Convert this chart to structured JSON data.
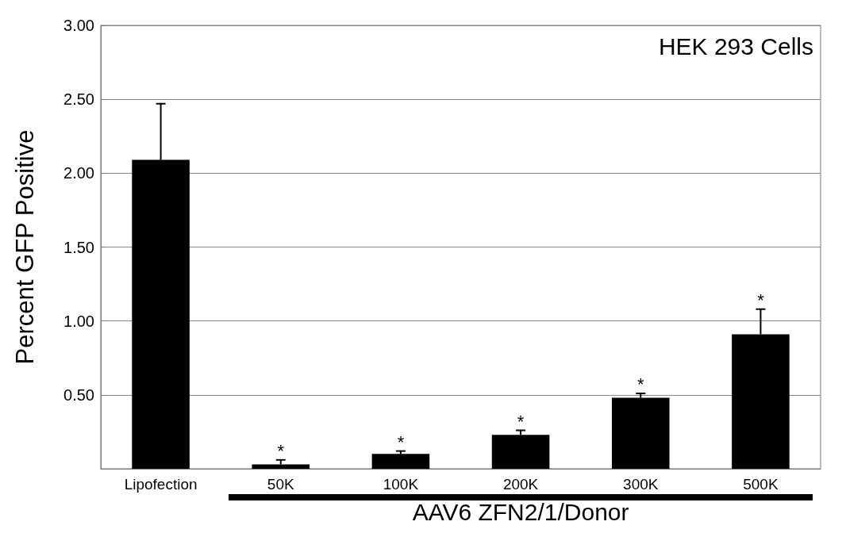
{
  "chart_data": {
    "type": "bar",
    "title": "HEK 293 Cells",
    "xlabel": "AAV6 ZFN2/1/Donor",
    "ylabel": "Percent GFP Positive",
    "categories": [
      "Lipofection",
      "50K",
      "100K",
      "200K",
      "300K",
      "500K"
    ],
    "values": [
      2.09,
      0.03,
      0.1,
      0.23,
      0.48,
      0.91
    ],
    "errors": [
      [
        2.09,
        2.47
      ],
      [
        0.03,
        0.06
      ],
      [
        0.1,
        0.12
      ],
      [
        0.23,
        0.26
      ],
      [
        0.48,
        0.51
      ],
      [
        0.91,
        1.08
      ]
    ],
    "color": "#000000",
    "ylim": [
      0,
      3
    ],
    "yticks": [
      {
        "value": 0.5,
        "label": "0.50"
      },
      {
        "value": 1,
        "label": "1.00"
      },
      {
        "value": 1.5,
        "label": "1.50"
      },
      {
        "value": 2,
        "label": "2.00"
      },
      {
        "value": 2.5,
        "label": "2.50"
      },
      {
        "value": 3,
        "label": "3.00"
      }
    ],
    "grid": "y",
    "value_labels": [
      null,
      "*",
      "*",
      "*",
      "*",
      "*"
    ]
  }
}
